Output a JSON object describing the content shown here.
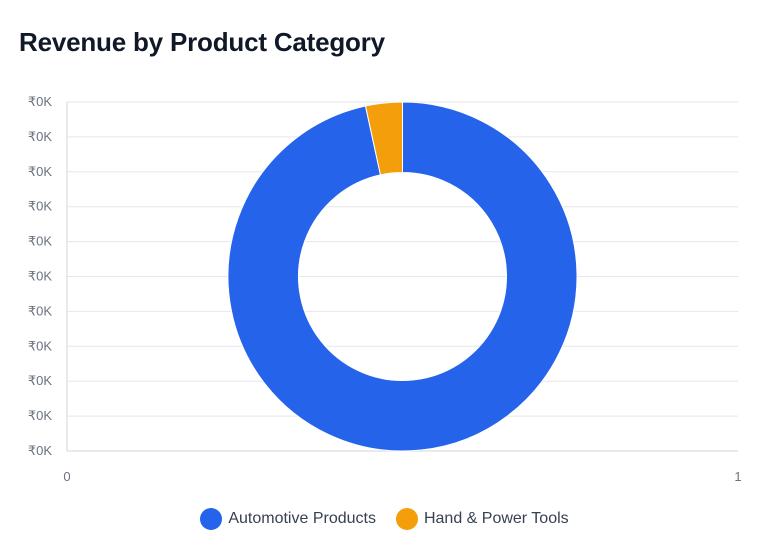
{
  "title": "Revenue by Product Category",
  "chart_data": {
    "type": "pie",
    "title": "Revenue by Product Category",
    "categories": [
      "Automotive Products",
      "Hand & Power Tools"
    ],
    "values": [
      96.6,
      3.4
    ],
    "colors": [
      "#2563eb",
      "#f59e0b"
    ],
    "donut": true,
    "y_tick_labels": [
      "₹0K",
      "₹0K",
      "₹0K",
      "₹0K",
      "₹0K",
      "₹0K",
      "₹0K",
      "₹0K",
      "₹0K",
      "₹0K",
      "₹0K"
    ],
    "x_tick_labels": [
      "0",
      "1"
    ],
    "xlim": [
      0,
      1
    ],
    "grid": true,
    "legend_position": "bottom-center"
  },
  "legend": [
    {
      "label": "Automotive Products",
      "color": "#2563eb"
    },
    {
      "label": "Hand & Power Tools",
      "color": "#f59e0b"
    }
  ]
}
